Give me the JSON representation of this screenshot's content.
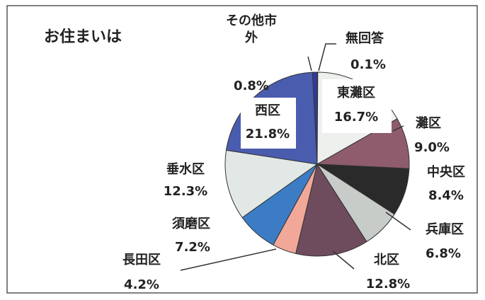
{
  "chart_data": {
    "type": "pie",
    "title": "お住まいは",
    "categories": [
      "無回答",
      "東灘区",
      "灘区",
      "中央区",
      "兵庫区",
      "北区",
      "長田区",
      "須磨区",
      "垂水区",
      "西区",
      "その他市外"
    ],
    "values": [
      0.1,
      16.7,
      9.0,
      8.4,
      6.8,
      12.8,
      4.2,
      7.2,
      12.3,
      21.8,
      0.8
    ],
    "value_labels": [
      "0.1%",
      "16.7%",
      "9.0%",
      "8.4%",
      "6.8%",
      "12.8%",
      "4.2%",
      "7.2%",
      "12.3%",
      "21.8%",
      "0.8%"
    ],
    "colors": [
      "#e0607a",
      "#eef0ee",
      "#8e5c6c",
      "#2a2a2a",
      "#c8ccc8",
      "#6e4c5e",
      "#f2a898",
      "#3c7cc4",
      "#e2e8e6",
      "#4a5cae",
      "#2e3c9c"
    ]
  }
}
